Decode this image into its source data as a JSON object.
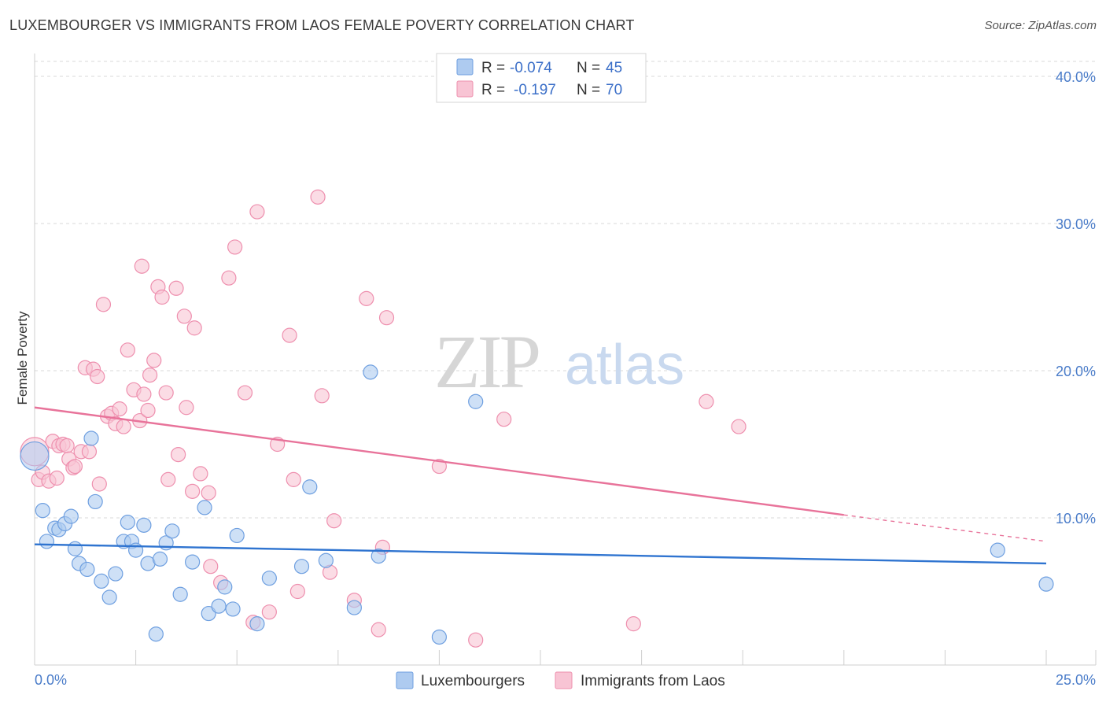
{
  "title": "LUXEMBOURGER VS IMMIGRANTS FROM LAOS FEMALE POVERTY CORRELATION CHART",
  "source": "Source: ZipAtlas.com",
  "watermark": {
    "zip": "ZIP",
    "atlas": "atlas"
  },
  "colors": {
    "blue_fill": "#aecbf0",
    "blue_stroke": "#6e9fe0",
    "blue_line": "#2f74d0",
    "pink_fill": "#f8c4d4",
    "pink_stroke": "#ee8fae",
    "pink_line": "#e8739a",
    "tick_text": "#4a7cc9",
    "grid": "#d8d8d8"
  },
  "legend": {
    "rows": [
      {
        "r_label": "R =",
        "r_value": "-0.074",
        "n_label": "N =",
        "n_value": "45"
      },
      {
        "r_label": "R =",
        "r_value": "-0.197",
        "n_label": "N =",
        "n_value": "70"
      }
    ]
  },
  "chart_data": {
    "type": "scatter",
    "title": "LUXEMBOURGER VS IMMIGRANTS FROM LAOS FEMALE POVERTY CORRELATION CHART",
    "xlabel": "",
    "ylabel": "Female Poverty",
    "xlim": [
      0,
      25
    ],
    "ylim": [
      0,
      40
    ],
    "x_tick_labels": {
      "min": "0.0%",
      "max": "25.0%"
    },
    "y_ticks": [
      10,
      20,
      30,
      40
    ],
    "y_tick_labels": [
      "10.0%",
      "20.0%",
      "30.0%",
      "40.0%"
    ],
    "grid": true,
    "legend_position": "top-center",
    "series": [
      {
        "name": "Luxembourgers",
        "r": -0.074,
        "n": 45,
        "trend": {
          "x0": 0,
          "y0": 8.2,
          "x1": 25,
          "y1": 6.9
        },
        "points": [
          [
            0.0,
            14.2,
            "big"
          ],
          [
            0.2,
            10.5
          ],
          [
            0.3,
            8.4
          ],
          [
            0.5,
            9.3
          ],
          [
            0.6,
            9.2
          ],
          [
            0.75,
            9.6
          ],
          [
            0.9,
            10.1
          ],
          [
            1.0,
            7.9
          ],
          [
            1.1,
            6.9
          ],
          [
            1.3,
            6.5
          ],
          [
            1.4,
            15.4
          ],
          [
            1.5,
            11.1
          ],
          [
            1.65,
            5.7
          ],
          [
            1.85,
            4.6
          ],
          [
            2.0,
            6.2
          ],
          [
            2.2,
            8.4
          ],
          [
            2.3,
            9.7
          ],
          [
            2.4,
            8.4
          ],
          [
            2.5,
            7.8
          ],
          [
            2.7,
            9.5
          ],
          [
            2.8,
            6.9
          ],
          [
            3.0,
            2.1
          ],
          [
            3.1,
            7.2
          ],
          [
            3.25,
            8.3
          ],
          [
            3.4,
            9.1
          ],
          [
            3.6,
            4.8
          ],
          [
            3.9,
            7.0
          ],
          [
            4.2,
            10.7
          ],
          [
            4.3,
            3.5
          ],
          [
            4.55,
            4.0
          ],
          [
            4.7,
            5.3
          ],
          [
            4.9,
            3.8
          ],
          [
            5.0,
            8.8
          ],
          [
            5.5,
            2.8
          ],
          [
            5.8,
            5.9
          ],
          [
            6.6,
            6.7
          ],
          [
            6.8,
            12.1
          ],
          [
            7.2,
            7.1
          ],
          [
            7.9,
            3.9
          ],
          [
            8.3,
            19.9
          ],
          [
            8.5,
            7.4
          ],
          [
            10.0,
            1.9
          ],
          [
            10.9,
            17.9
          ],
          [
            23.8,
            7.8
          ],
          [
            25.0,
            5.5
          ]
        ]
      },
      {
        "name": "Immigrants from Laos",
        "r": -0.197,
        "n": 70,
        "trend": {
          "x0": 0,
          "y0": 17.5,
          "x1": 20,
          "y1": 10.2,
          "x_dash_end": 25,
          "y_dash_end": 8.4
        },
        "points": [
          [
            0.0,
            14.5,
            "big"
          ],
          [
            0.1,
            12.6
          ],
          [
            0.2,
            13.1
          ],
          [
            0.35,
            12.5
          ],
          [
            0.45,
            15.2
          ],
          [
            0.55,
            12.7
          ],
          [
            0.6,
            14.9
          ],
          [
            0.7,
            15.0
          ],
          [
            0.8,
            14.9
          ],
          [
            0.85,
            14.0
          ],
          [
            0.95,
            13.4
          ],
          [
            1.0,
            13.5
          ],
          [
            1.15,
            14.5
          ],
          [
            1.25,
            20.2
          ],
          [
            1.35,
            14.5
          ],
          [
            1.45,
            20.1
          ],
          [
            1.55,
            19.6
          ],
          [
            1.6,
            12.3
          ],
          [
            1.7,
            24.5
          ],
          [
            1.8,
            16.9
          ],
          [
            1.9,
            17.1
          ],
          [
            2.0,
            16.4
          ],
          [
            2.1,
            17.4
          ],
          [
            2.2,
            16.2
          ],
          [
            2.3,
            21.4
          ],
          [
            2.45,
            18.7
          ],
          [
            2.6,
            16.6
          ],
          [
            2.65,
            27.1
          ],
          [
            2.7,
            18.4
          ],
          [
            2.8,
            17.3
          ],
          [
            2.85,
            19.7
          ],
          [
            2.95,
            20.7
          ],
          [
            3.05,
            25.7
          ],
          [
            3.15,
            25.0
          ],
          [
            3.25,
            18.5
          ],
          [
            3.3,
            12.6
          ],
          [
            3.5,
            25.6
          ],
          [
            3.55,
            14.3
          ],
          [
            3.7,
            23.7
          ],
          [
            3.75,
            17.5
          ],
          [
            3.9,
            11.8
          ],
          [
            3.95,
            22.9
          ],
          [
            4.1,
            13.0
          ],
          [
            4.3,
            11.7
          ],
          [
            4.35,
            6.7
          ],
          [
            4.6,
            5.6
          ],
          [
            4.8,
            26.3
          ],
          [
            4.95,
            28.4
          ],
          [
            5.2,
            18.5
          ],
          [
            5.4,
            2.9
          ],
          [
            5.5,
            30.8
          ],
          [
            5.8,
            3.6
          ],
          [
            6.0,
            15.0
          ],
          [
            6.3,
            22.4
          ],
          [
            6.4,
            12.6
          ],
          [
            6.5,
            5.0
          ],
          [
            7.0,
            31.8
          ],
          [
            7.1,
            18.3
          ],
          [
            7.3,
            6.3
          ],
          [
            7.4,
            9.8
          ],
          [
            7.9,
            4.4
          ],
          [
            8.2,
            24.9
          ],
          [
            8.5,
            2.4
          ],
          [
            8.6,
            8.0
          ],
          [
            8.7,
            23.6
          ],
          [
            10.0,
            13.5
          ],
          [
            10.9,
            1.7
          ],
          [
            11.6,
            16.7
          ],
          [
            14.8,
            2.8
          ],
          [
            16.6,
            17.9
          ],
          [
            17.4,
            16.2
          ]
        ]
      }
    ]
  },
  "bottom_legend": [
    {
      "label": "Luxembourgers"
    },
    {
      "label": "Immigrants from Laos"
    }
  ]
}
